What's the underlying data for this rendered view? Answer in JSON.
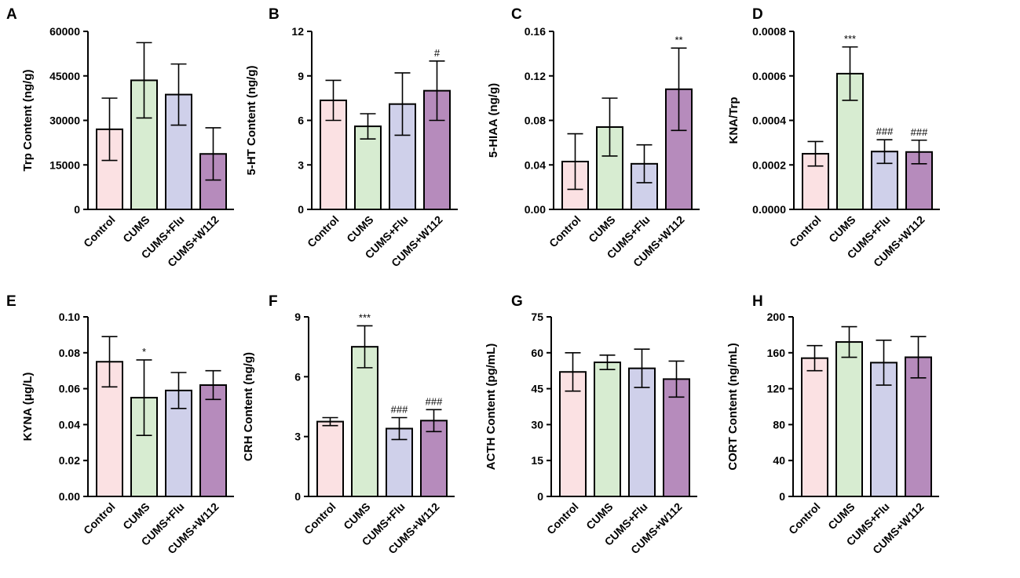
{
  "colors": [
    "#fbe1e3",
    "#d7ecd1",
    "#cfd0ea",
    "#b68bbc"
  ],
  "chart_data": [
    {
      "panel": "A",
      "type": "bar",
      "categories": [
        "Control",
        "CUMS",
        "CUMS+Flu",
        "CUMS+W112"
      ],
      "values": [
        27000,
        43500,
        38700,
        18700
      ],
      "errors": [
        10500,
        12700,
        10300,
        8800
      ],
      "annotations": [
        "",
        "",
        "",
        ""
      ],
      "ylabel": "Trp Content (ng/g)",
      "ylim": [
        0,
        60000
      ],
      "ticks": [
        0,
        15000,
        30000,
        45000,
        60000
      ],
      "tick_labels": [
        "0",
        "15000",
        "30000",
        "45000",
        "60000"
      ]
    },
    {
      "panel": "B",
      "type": "bar",
      "categories": [
        "Control",
        "CUMS",
        "CUMS+Flu",
        "CUMS+W112"
      ],
      "values": [
        7.35,
        5.6,
        7.1,
        8.0
      ],
      "errors": [
        1.35,
        0.85,
        2.1,
        2.0
      ],
      "annotations": [
        "",
        "",
        "",
        "#"
      ],
      "ylabel": "5-HT Content (ng/g)",
      "ylim": [
        0,
        12
      ],
      "ticks": [
        0,
        3,
        6,
        9,
        12
      ],
      "tick_labels": [
        "0",
        "3",
        "6",
        "9",
        "12"
      ]
    },
    {
      "panel": "C",
      "type": "bar",
      "categories": [
        "Control",
        "CUMS",
        "CUMS+Flu",
        "CUMS+W112"
      ],
      "values": [
        0.043,
        0.074,
        0.041,
        0.108
      ],
      "errors": [
        0.025,
        0.026,
        0.017,
        0.037
      ],
      "annotations": [
        "",
        "",
        "",
        "**"
      ],
      "ylabel": "5-HIAA (ng/g)",
      "ylim": [
        0,
        0.16
      ],
      "ticks": [
        0,
        0.04,
        0.08,
        0.12,
        0.16
      ],
      "tick_labels": [
        "0.00",
        "0.04",
        "0.08",
        "0.12",
        "0.16"
      ]
    },
    {
      "panel": "D",
      "type": "bar",
      "categories": [
        "Control",
        "CUMS",
        "CUMS+Flu",
        "CUMS+W112"
      ],
      "values": [
        0.00025,
        0.00061,
        0.00026,
        0.000258
      ],
      "errors": [
        5.5e-05,
        0.00012,
        5.3e-05,
        5.3e-05
      ],
      "annotations": [
        "",
        "***",
        "###",
        "###"
      ],
      "ylabel": "KNA/Trp",
      "ylim": [
        0,
        0.0008
      ],
      "ticks": [
        0,
        0.0002,
        0.0004,
        0.0006,
        0.0008
      ],
      "tick_labels": [
        "0.0000",
        "0.0002",
        "0.0004",
        "0.0006",
        "0.0008"
      ]
    },
    {
      "panel": "E",
      "type": "bar",
      "categories": [
        "Control",
        "CUMS",
        "CUMS+Flu",
        "CUMS+W112"
      ],
      "values": [
        0.075,
        0.055,
        0.059,
        0.062
      ],
      "errors": [
        0.014,
        0.021,
        0.01,
        0.008
      ],
      "annotations": [
        "",
        "*",
        "",
        ""
      ],
      "ylabel": "KYNA (μg/L)",
      "ylim": [
        0,
        0.1
      ],
      "ticks": [
        0,
        0.02,
        0.04,
        0.06,
        0.08,
        0.1
      ],
      "tick_labels": [
        "0.00",
        "0.02",
        "0.04",
        "0.06",
        "0.08",
        "0.10"
      ]
    },
    {
      "panel": "F",
      "type": "bar",
      "categories": [
        "Control",
        "CUMS",
        "CUMS+Flu",
        "CUMS+W112"
      ],
      "values": [
        3.75,
        7.5,
        3.4,
        3.8
      ],
      "errors": [
        0.2,
        1.05,
        0.55,
        0.55
      ],
      "annotations": [
        "",
        "***",
        "###",
        "###"
      ],
      "ylabel": "CRH Content (ng/g)",
      "ylim": [
        0,
        9
      ],
      "ticks": [
        0,
        3,
        6,
        9
      ],
      "tick_labels": [
        "0",
        "3",
        "6",
        "9"
      ]
    },
    {
      "panel": "G",
      "type": "bar",
      "categories": [
        "Control",
        "CUMS",
        "CUMS+Flu",
        "CUMS+W112"
      ],
      "values": [
        52,
        56,
        53.5,
        49
      ],
      "errors": [
        8,
        3,
        8,
        7.5
      ],
      "annotations": [
        "",
        "",
        "",
        ""
      ],
      "ylabel": "ACTH Content (pg/mL)",
      "ylim": [
        0,
        75
      ],
      "ticks": [
        0,
        15,
        30,
        45,
        60,
        75
      ],
      "tick_labels": [
        "0",
        "15",
        "30",
        "45",
        "60",
        "75"
      ]
    },
    {
      "panel": "H",
      "type": "bar",
      "categories": [
        "Control",
        "CUMS",
        "CUMS+Flu",
        "CUMS+W112"
      ],
      "values": [
        154,
        172,
        149,
        155
      ],
      "errors": [
        14,
        17,
        25,
        23
      ],
      "annotations": [
        "",
        "",
        "",
        ""
      ],
      "ylabel": "CORT Content (ng/mL)",
      "ylim": [
        0,
        200
      ],
      "ticks": [
        0,
        40,
        80,
        120,
        160,
        200
      ],
      "tick_labels": [
        "0",
        "40",
        "80",
        "120",
        "160",
        "200"
      ]
    }
  ]
}
